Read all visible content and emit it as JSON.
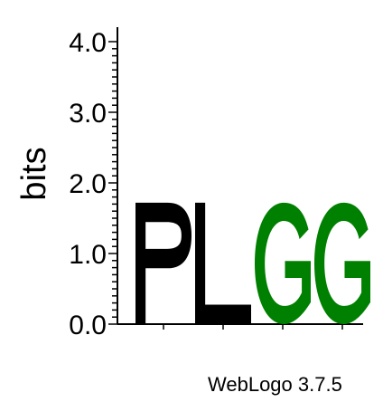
{
  "credit": "WebLogo 3.7.5",
  "chart_data": {
    "type": "sequence-logo",
    "ylabel": "bits",
    "ylim": [
      0,
      4
    ],
    "yticks": [
      "0.0",
      "1.0",
      "2.0",
      "3.0",
      "4.0"
    ],
    "positions": [
      {
        "stack": [
          {
            "letter": "P",
            "bits": 1.72,
            "color": "#000000"
          }
        ]
      },
      {
        "stack": [
          {
            "letter": "L",
            "bits": 1.72,
            "color": "#000000"
          }
        ]
      },
      {
        "stack": [
          {
            "letter": "G",
            "bits": 1.72,
            "color": "#008000"
          }
        ]
      },
      {
        "stack": [
          {
            "letter": "G",
            "bits": 1.72,
            "color": "#008000"
          }
        ]
      }
    ]
  }
}
